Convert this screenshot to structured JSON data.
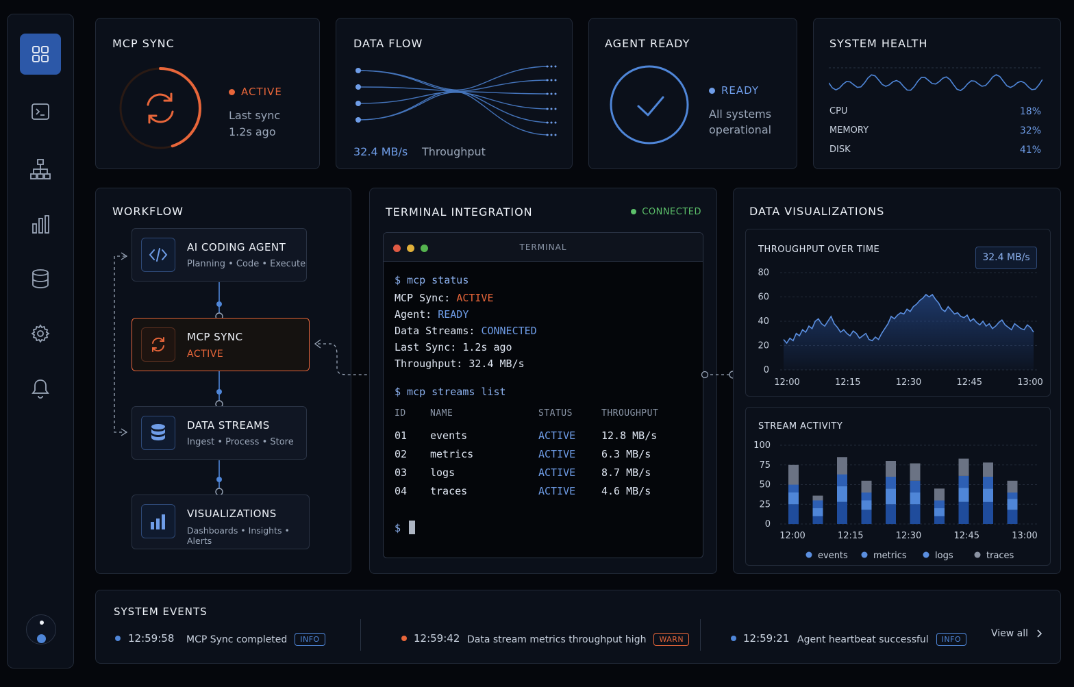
{
  "mcp_sync": {
    "title": "MCP SYNC",
    "status": "ACTIVE",
    "last_sync_label": "Last sync",
    "last_sync_value": "1.2s ago",
    "progress": 0.45
  },
  "data_flow": {
    "title": "DATA FLOW",
    "rate": "32.4 MB/s",
    "rate_label": "Throughput"
  },
  "agent_ready": {
    "title": "AGENT READY",
    "status": "READY",
    "line1": "All systems",
    "line2": "operational"
  },
  "system_health": {
    "title": "SYSTEM HEALTH",
    "metrics": [
      {
        "label": "CPU",
        "value": "18%"
      },
      {
        "label": "MEMORY",
        "value": "32%"
      },
      {
        "label": "DISK",
        "value": "41%"
      }
    ]
  },
  "workflow": {
    "title": "WORKFLOW",
    "nodes": [
      {
        "title": "AI CODING AGENT",
        "sub": "Planning • Code • Execute",
        "icon": "code-icon"
      },
      {
        "title": "MCP SYNC",
        "sub": "ACTIVE",
        "icon": "sync-icon"
      },
      {
        "title": "DATA STREAMS",
        "sub": "Ingest • Process • Store",
        "icon": "database-icon"
      },
      {
        "title": "VISUALIZATIONS",
        "sub": "Dashboards • Insights • Alerts",
        "icon": "bar-chart-icon"
      }
    ]
  },
  "terminal": {
    "title": "TERMINAL INTEGRATION",
    "connection": "CONNECTED",
    "window_title": "TERMINAL",
    "cmd1": "$ mcp status",
    "l1k": "MCP Sync: ",
    "l1v": "ACTIVE",
    "l2k": "Agent: ",
    "l2v": "READY",
    "l3k": "Data Streams: ",
    "l3v": "CONNECTED",
    "l4": "Last Sync: 1.2s ago",
    "l5": "Throughput: 32.4 MB/s",
    "cmd2": "$ mcp streams list",
    "headers": [
      "ID",
      "NAME",
      "STATUS",
      "THROUGHPUT"
    ],
    "rows": [
      [
        "01",
        "events",
        "ACTIVE",
        "12.8 MB/s"
      ],
      [
        "02",
        "metrics",
        "ACTIVE",
        "6.3 MB/s"
      ],
      [
        "03",
        "logs",
        "ACTIVE",
        "8.7 MB/s"
      ],
      [
        "04",
        "traces",
        "ACTIVE",
        "4.6 MB/s"
      ]
    ],
    "prompt": "$"
  },
  "dataviz": {
    "title": "DATA VISUALIZATIONS"
  },
  "chart_data": [
    {
      "type": "area",
      "title": "THROUGHPUT OVER TIME",
      "badge": "32.4 MB/s",
      "ylim": [
        0,
        80
      ],
      "yticks": [
        "80",
        "60",
        "40",
        "20",
        "0"
      ],
      "xticks": [
        "12:00",
        "12:15",
        "12:30",
        "12:45",
        "13:00"
      ],
      "values": [
        25,
        22,
        26,
        24,
        30,
        28,
        33,
        31,
        36,
        34,
        40,
        42,
        38,
        36,
        40,
        44,
        38,
        35,
        31,
        33,
        30,
        28,
        32,
        30,
        26,
        28,
        30,
        25,
        24,
        27,
        25,
        30,
        34,
        38,
        44,
        42,
        45,
        47,
        46,
        50,
        48,
        52,
        54,
        57,
        59,
        62,
        60,
        62,
        58,
        55,
        50,
        48,
        52,
        49,
        46,
        47,
        44,
        43,
        45,
        40,
        42,
        39,
        37,
        40,
        36,
        38,
        34,
        36,
        39,
        41,
        37,
        35,
        33,
        38,
        36,
        34,
        33,
        37,
        35,
        31
      ]
    },
    {
      "type": "bar",
      "title": "STREAM ACTIVITY",
      "ylim": [
        0,
        100
      ],
      "yticks": [
        "100",
        "75",
        "50",
        "25",
        "0"
      ],
      "xticks": [
        "12:00",
        "12:15",
        "12:30",
        "12:45",
        "13:00"
      ],
      "series": [
        {
          "name": "events",
          "color": "#1f4c9c",
          "values": [
            25,
            10,
            28,
            18,
            25,
            25,
            10,
            28,
            28,
            18
          ]
        },
        {
          "name": "metrics",
          "color": "#4f86d8",
          "values": [
            15,
            10,
            20,
            12,
            20,
            15,
            10,
            18,
            17,
            14
          ]
        },
        {
          "name": "logs",
          "color": "#2d5fb4",
          "values": [
            10,
            10,
            15,
            10,
            15,
            15,
            10,
            15,
            15,
            8
          ]
        },
        {
          "name": "traces",
          "color": "#6b7384",
          "values": [
            25,
            6,
            22,
            15,
            20,
            22,
            15,
            22,
            18,
            15
          ]
        }
      ]
    }
  ],
  "events": {
    "title": "SYSTEM EVENTS",
    "view_all": "View all",
    "items": [
      {
        "time": "12:59:58",
        "msg": "MCP Sync completed",
        "tag": "INFO",
        "color": "#4f86d8"
      },
      {
        "time": "12:59:42",
        "msg": "Data stream metrics throughput high",
        "tag": "WARN",
        "color": "#e8663a"
      },
      {
        "time": "12:59:21",
        "msg": "Agent heartbeat successful",
        "tag": "INFO",
        "color": "#4f86d8"
      }
    ]
  },
  "colors": {
    "accent": "#4f86d8",
    "orange": "#e8663a",
    "green": "#5cc06a"
  }
}
